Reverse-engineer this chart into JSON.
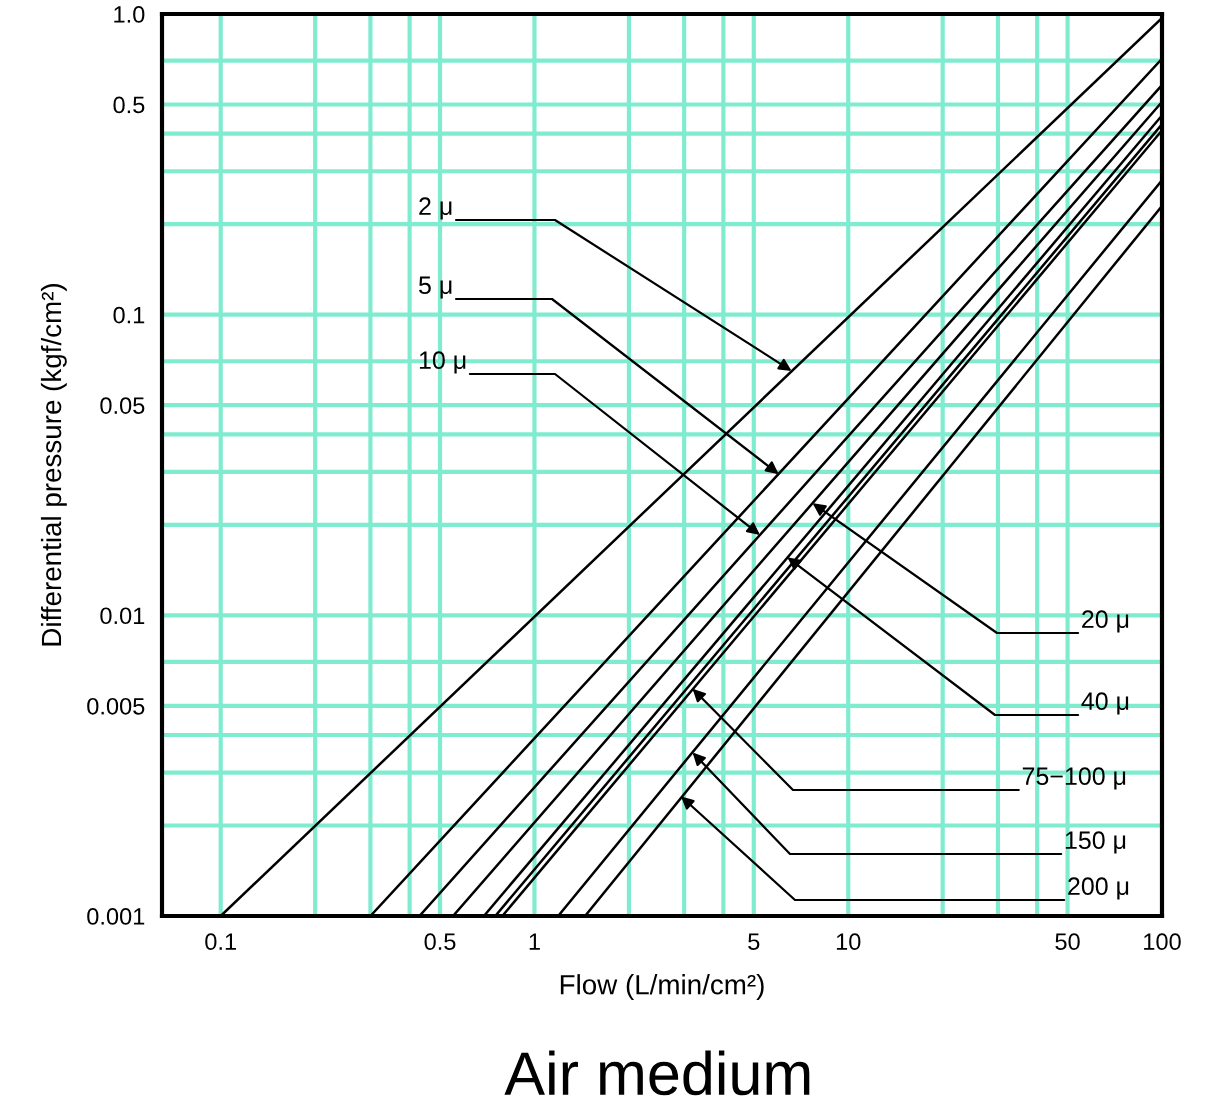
{
  "chart_data": {
    "type": "line",
    "title": "Air medium",
    "xlabel": "Flow (L/min/cm²)",
    "ylabel": "Differential pressure (kgf/cm²)",
    "log": "xy",
    "grid": true,
    "marker": "none",
    "line_style": "solid",
    "xlim": [
      0.065,
      100
    ],
    "ylim": [
      0.001,
      1
    ],
    "xticks": [
      0.1,
      {
        "value": 0.2,
        "label": null
      },
      {
        "value": 0.3,
        "label": null
      },
      {
        "value": 0.4,
        "label": null
      },
      0.5,
      1,
      {
        "value": 2,
        "label": null
      },
      {
        "value": 3,
        "label": null
      },
      {
        "value": 4,
        "label": null
      },
      5,
      10,
      {
        "value": 20,
        "label": null
      },
      {
        "value": 30,
        "label": null
      },
      {
        "value": 40,
        "label": null
      },
      50,
      100
    ],
    "yticks": [
      0.001,
      {
        "value": 0.002,
        "label": null
      },
      {
        "value": 0.003,
        "label": null
      },
      {
        "value": 0.004,
        "label": null
      },
      0.005,
      {
        "value": 0.007,
        "label": null
      },
      0.01,
      {
        "value": 0.02,
        "label": null
      },
      {
        "value": 0.03,
        "label": null
      },
      {
        "value": 0.04,
        "label": null
      },
      0.05,
      {
        "value": 0.07,
        "label": null
      },
      0.1,
      {
        "value": 0.2,
        "label": null
      },
      {
        "value": 0.3,
        "label": null
      },
      {
        "value": 0.4,
        "label": null
      },
      0.5,
      {
        "value": 0.7,
        "label": null
      },
      {
        "value": 1,
        "label": "1.0"
      }
    ],
    "series": [
      {
        "color": "#000000",
        "x": [
          0.1,
          100
        ],
        "values": [
          0.001,
          0.97
        ]
      },
      {
        "color": "#000000",
        "x": [
          0.3,
          100
        ],
        "values": [
          0.001,
          0.71
        ]
      },
      {
        "color": "#000000",
        "x": [
          0.43,
          100
        ],
        "values": [
          0.001,
          0.58
        ]
      },
      {
        "color": "#000000",
        "x": [
          0.55,
          100
        ],
        "values": [
          0.001,
          0.51
        ]
      },
      {
        "color": "#000000",
        "x": [
          0.69,
          100
        ],
        "values": [
          0.001,
          0.46
        ]
      },
      {
        "color": "#000000",
        "x": [
          0.75,
          100
        ],
        "values": [
          0.001,
          0.43
        ]
      },
      {
        "color": "#000000",
        "x": [
          0.79,
          100
        ],
        "values": [
          0.001,
          0.41
        ]
      },
      {
        "color": "#000000",
        "x": [
          1.19,
          100
        ],
        "values": [
          0.001,
          0.28
        ]
      },
      {
        "color": "#000000",
        "x": [
          1.45,
          100
        ],
        "values": [
          0.001,
          0.23
        ]
      }
    ],
    "annotations": [
      {
        "text": "2 μ",
        "x": 6.6,
        "y": 0.065
      },
      {
        "text": "5 μ",
        "x": 6.0,
        "y": 0.0295
      },
      {
        "text": "10 μ",
        "x": 5.23,
        "y": 0.0185
      },
      {
        "text": "20 μ",
        "x": 7.7,
        "y": 0.0236
      },
      {
        "text": "40 μ",
        "x": 6.4,
        "y": 0.0156
      },
      {
        "text": "75−100 μ",
        "x": 3.19,
        "y": 0.0057
      },
      {
        "text": "150 μ",
        "x": 3.19,
        "y": 0.0035
      },
      {
        "text": "200 μ",
        "x": 2.93,
        "y": 0.0025
      }
    ]
  }
}
